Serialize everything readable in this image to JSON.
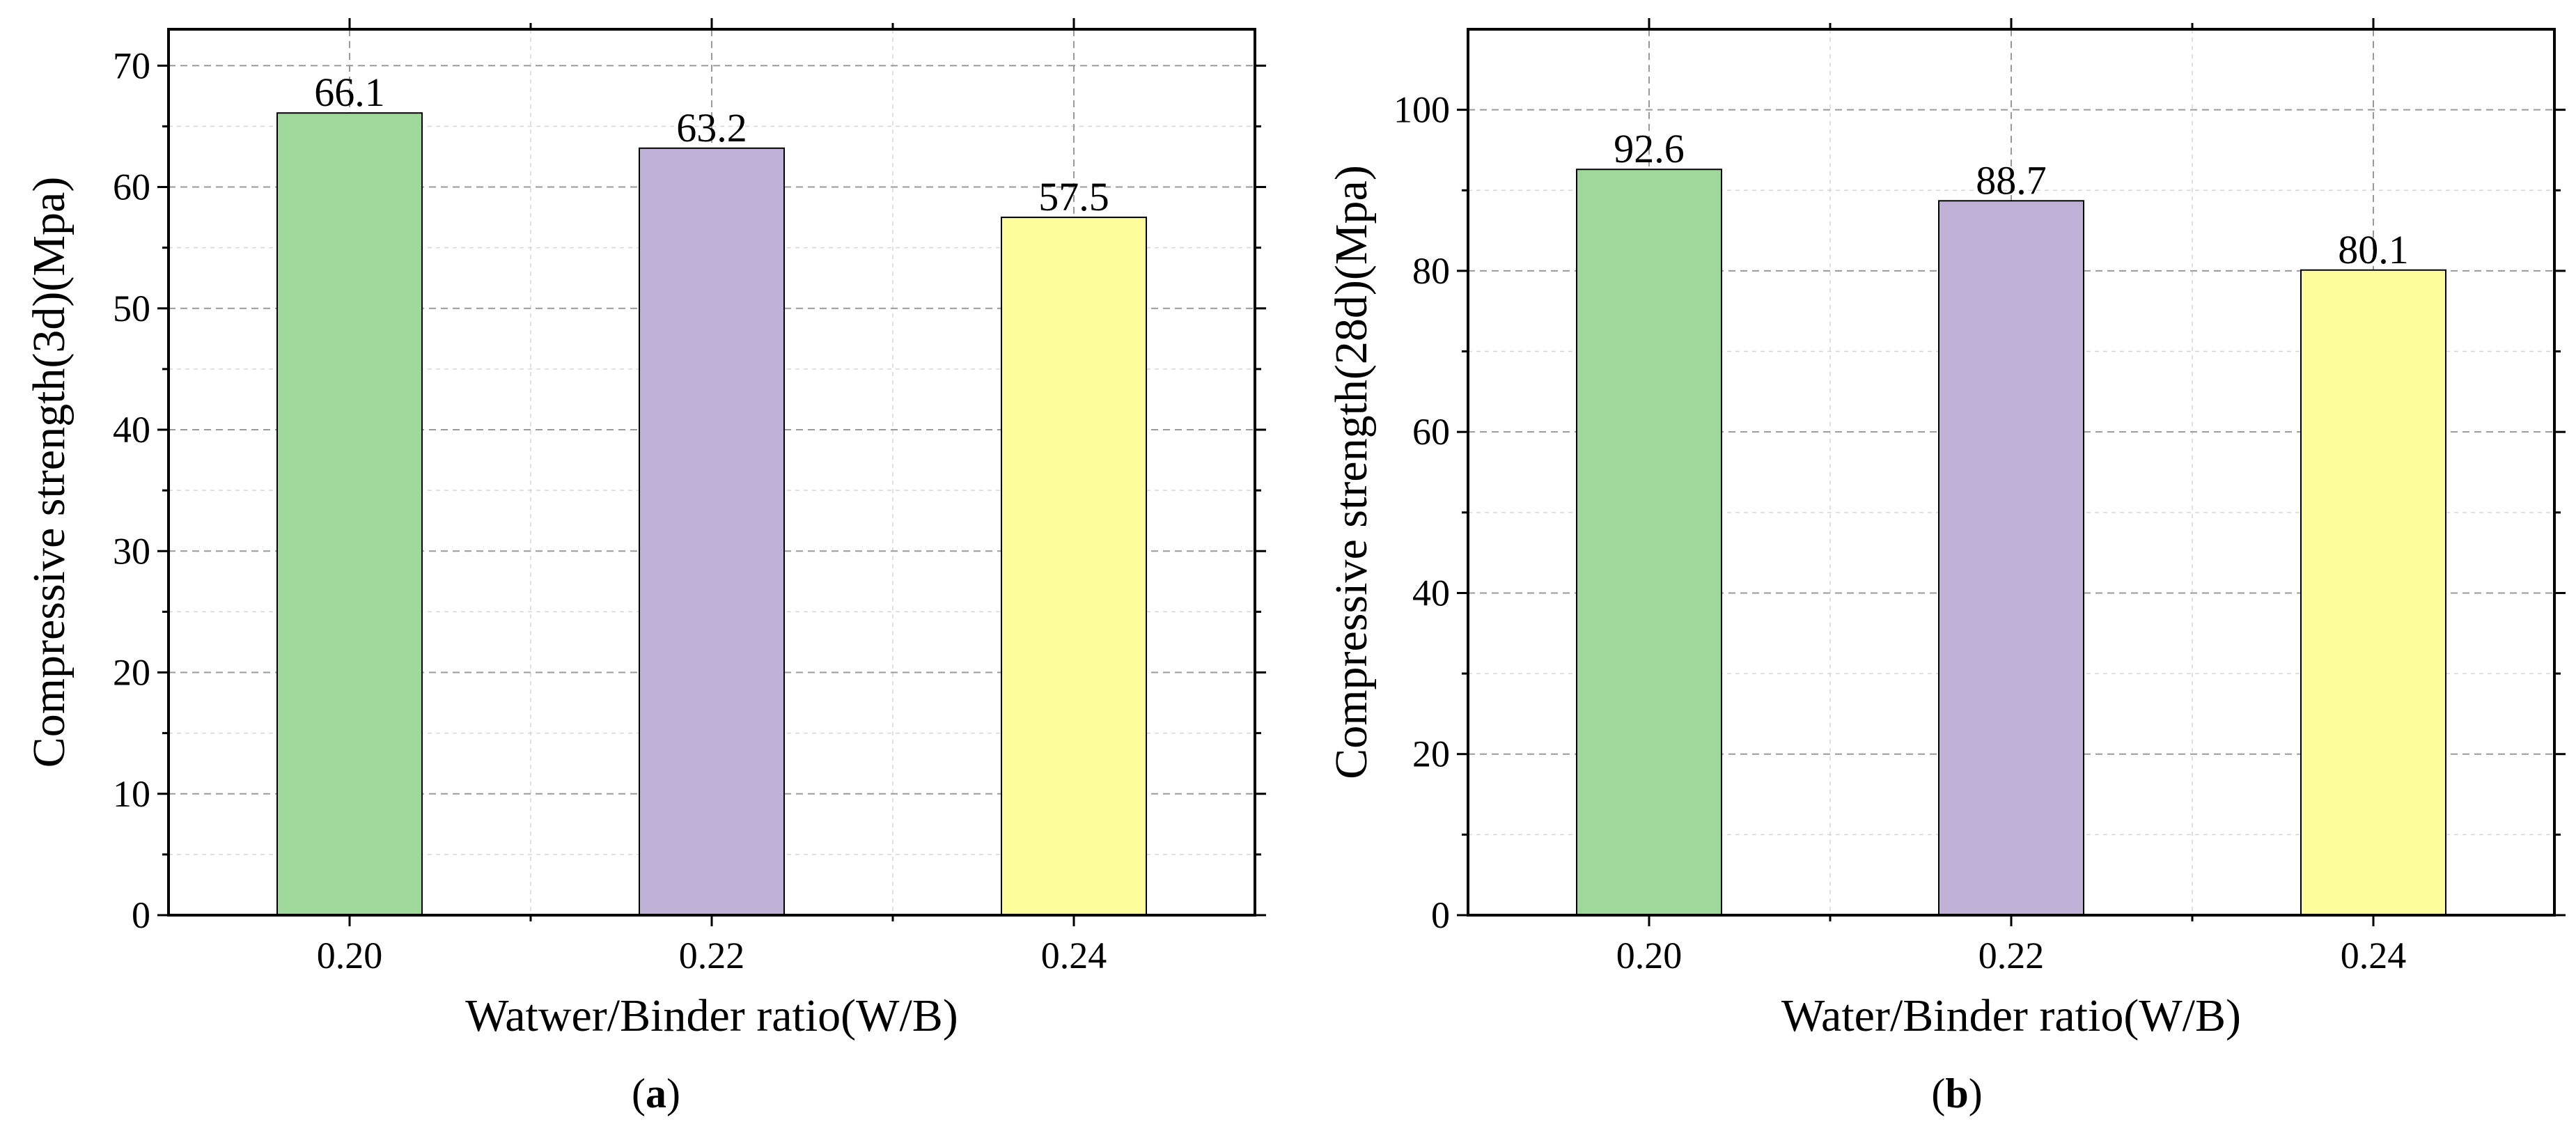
{
  "chart_data": [
    {
      "type": "bar",
      "panel_label": "a",
      "categories": [
        "0.20",
        "0.22",
        "0.24"
      ],
      "values": [
        66.1,
        63.2,
        57.5
      ],
      "value_labels": [
        "66.1",
        "63.2",
        "57.5"
      ],
      "colors": [
        "#9ed89b",
        "#bfb2d6",
        "#fefd9c"
      ],
      "xlabel": "Watwer/Binder ratio(W/B)",
      "ylabel": "Compressive strength(3d)(Mpa)",
      "ylim": [
        0,
        73
      ],
      "yticks": [
        0,
        10,
        20,
        30,
        40,
        50,
        60,
        70
      ],
      "ytick_labels": [
        "0",
        "10",
        "20",
        "30",
        "40",
        "50",
        "60",
        "70"
      ],
      "grid": true
    },
    {
      "type": "bar",
      "panel_label": "b",
      "categories": [
        "0.20",
        "0.22",
        "0.24"
      ],
      "values": [
        92.6,
        88.7,
        80.1
      ],
      "value_labels": [
        "92.6",
        "88.7",
        "80.1"
      ],
      "colors": [
        "#9ed89b",
        "#bfb2d6",
        "#fefd9c"
      ],
      "xlabel": "Water/Binder ratio(W/B)",
      "ylabel": "Compressive strength(28d)(Mpa)",
      "ylim": [
        0,
        110
      ],
      "yticks": [
        0,
        20,
        40,
        60,
        80,
        100
      ],
      "ytick_labels": [
        "0",
        "20",
        "40",
        "60",
        "80",
        "100"
      ],
      "grid": true
    }
  ]
}
